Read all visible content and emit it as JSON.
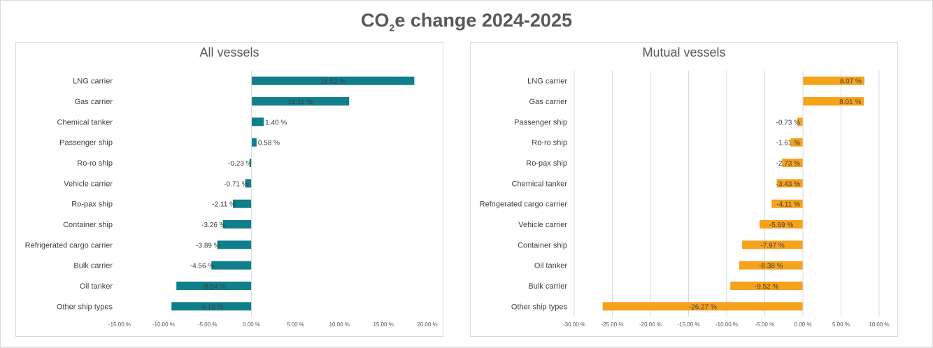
{
  "title": {
    "prefix": "CO",
    "sub": "2",
    "suffix": "e change 2024-2025"
  },
  "chart_data": [
    {
      "type": "bar",
      "orientation": "horizontal",
      "title": "All vessels",
      "color": "#0f7f8c",
      "categories": [
        "LNG carrier",
        "Gas carrier",
        "Chemical tanker",
        "Passenger ship",
        "Ro-ro ship",
        "Vehicle carrier",
        "Ro-pax ship",
        "Container ship",
        "Refrigerated cargo carrier",
        "Bulk carrier",
        "Oil tanker",
        "Other ship types"
      ],
      "values": [
        18.52,
        11.11,
        1.4,
        0.58,
        -0.23,
        -0.71,
        -2.11,
        -3.26,
        -3.89,
        -4.56,
        -8.54,
        -9.1
      ],
      "labels": [
        "18.52 %",
        "11.11 %",
        "1.40 %",
        "0.58 %",
        "-0.23 %",
        "-0.71 %",
        "-2.11 %",
        "-3.26 %",
        "-3.89 %",
        "-4.56 %",
        "-8.54 %",
        "-9.10 %"
      ],
      "xlim": [
        -15,
        20
      ],
      "ticks": [
        -15,
        -10,
        -5,
        0,
        5,
        10,
        15,
        20
      ],
      "tick_labels": [
        "-15.00 %",
        "-10.00 %",
        "-5.00 %",
        "0.00 %",
        "5.00 %",
        "10.00 %",
        "15.00 %",
        "20.00 %"
      ],
      "grid": false
    },
    {
      "type": "bar",
      "orientation": "horizontal",
      "title": "Mutual vessels",
      "color": "#f7a21b",
      "categories": [
        "LNG carrier",
        "Gas carrier",
        "Passenger ship",
        "Ro-ro ship",
        "Ro-pax ship",
        "Chemical tanker",
        "Refrigerated cargo carrier",
        "Vehicle carrier",
        "Container ship",
        "Oil tanker",
        "Bulk carrier",
        "Other ship types"
      ],
      "values": [
        8.07,
        8.01,
        -0.73,
        -1.61,
        -2.73,
        -3.43,
        -4.11,
        -5.69,
        -7.97,
        -8.38,
        -9.52,
        -26.27
      ],
      "labels": [
        "8.07 %",
        "8.01 %",
        "-0.73 %",
        "-1.61 %",
        "-2.73 %",
        "-3.43 %",
        "-4.11 %",
        "-5.69 %",
        "-7.97 %",
        "-8.38 %",
        "-9.52 %",
        "-26.27 %"
      ],
      "xlim": [
        -30,
        10
      ],
      "ticks": [
        -30,
        -25,
        -20,
        -15,
        -10,
        -5,
        0,
        5,
        10
      ],
      "tick_labels": [
        "-30.00 %",
        "-25.00 %",
        "-20.00 %",
        "-15.00 %",
        "-10.00 %",
        "-5.00 %",
        "0.00 %",
        "5.00 %",
        "10.00 %"
      ],
      "grid": true
    }
  ]
}
